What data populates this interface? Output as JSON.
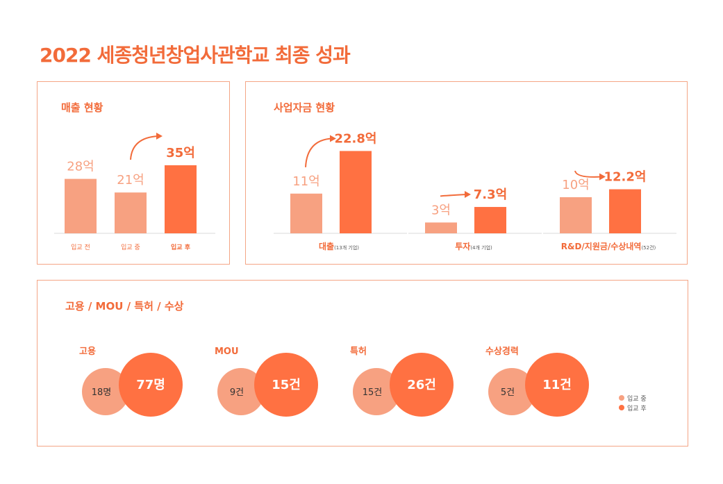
{
  "title": "2022 세종청년창업사관학교 최종 성과",
  "colors": {
    "accent": "#f26b3a",
    "before": "#f7a181",
    "after": "#ff7142",
    "border": "#f4a585"
  },
  "sales": {
    "panel_title": "매출 현황",
    "chart_data": {
      "type": "bar",
      "categories": [
        "입교 전",
        "입교 중",
        "입교 후"
      ],
      "values": [
        28,
        21,
        35
      ],
      "value_labels": [
        "28억",
        "21억",
        "35억"
      ],
      "unit": "억"
    }
  },
  "funding": {
    "panel_title": "사업자금 현황",
    "chart_data": [
      {
        "type": "bar",
        "category": "대출",
        "note": "(13개 기업)",
        "values": [
          11,
          22.8
        ],
        "value_labels": [
          "11억",
          "22.8억"
        ],
        "series": [
          "입교 중",
          "입교 후"
        ]
      },
      {
        "type": "bar",
        "category": "투자",
        "note": "(4개 기업)",
        "values": [
          3,
          7.3
        ],
        "value_labels": [
          "3억",
          "7.3억"
        ],
        "series": [
          "입교 중",
          "입교 후"
        ]
      },
      {
        "type": "bar",
        "category": "R&D/지원금/수상내역",
        "note": "(52건)",
        "values": [
          10,
          12.2
        ],
        "value_labels": [
          "10억",
          "12.2억"
        ],
        "series": [
          "입교 중",
          "입교 후"
        ]
      }
    ]
  },
  "outcomes": {
    "panel_title": "고용 / MOU / 특허 / 수상",
    "chart_data": {
      "type": "bubble",
      "categories": [
        {
          "name": "고용",
          "before": 18,
          "after": 77,
          "before_label": "18명",
          "after_label": "77명"
        },
        {
          "name": "MOU",
          "before": 9,
          "after": 15,
          "before_label": "9건",
          "after_label": "15건"
        },
        {
          "name": "특허",
          "before": 15,
          "after": 26,
          "before_label": "15건",
          "after_label": "26건"
        },
        {
          "name": "수상경력",
          "before": 5,
          "after": 11,
          "before_label": "5건",
          "after_label": "11건"
        }
      ],
      "legend": [
        "입교 중",
        "입교 후"
      ]
    }
  }
}
